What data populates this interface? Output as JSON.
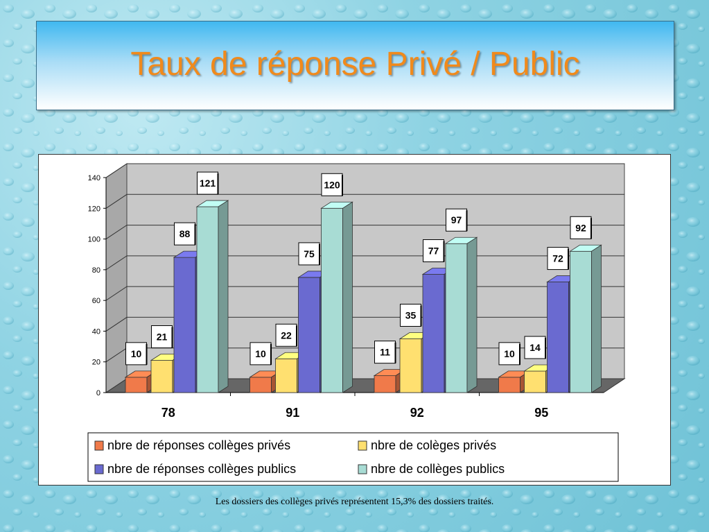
{
  "slide": {
    "title": "Taux de réponse Privé / Public",
    "caption": "Les dossiers des collèges privés représentent 15,3% des dossiers traités."
  },
  "chart_data": {
    "type": "bar",
    "title": "",
    "xlabel": "",
    "ylabel": "",
    "ylim": [
      0,
      140
    ],
    "yticks": [
      "0",
      "20",
      "40",
      "60",
      "80",
      "100",
      "120",
      "140"
    ],
    "categories": [
      "78",
      "91",
      "92",
      "95"
    ],
    "grid": true,
    "legend_position": "bottom",
    "series": [
      {
        "name": "nbre de réponses collèges privés",
        "values": [
          10,
          10,
          11,
          10
        ],
        "color": "#f07a4a"
      },
      {
        "name": "nbre de colèges privés",
        "values": [
          21,
          22,
          35,
          14
        ],
        "color": "#ffe070"
      },
      {
        "name": "nbre de réponses collèges publics",
        "values": [
          88,
          75,
          77,
          72
        ],
        "color": "#6a6ad0"
      },
      {
        "name": "nbre de collèges publics",
        "values": [
          121,
          120,
          97,
          92
        ],
        "color": "#a8dcd4"
      }
    ]
  }
}
